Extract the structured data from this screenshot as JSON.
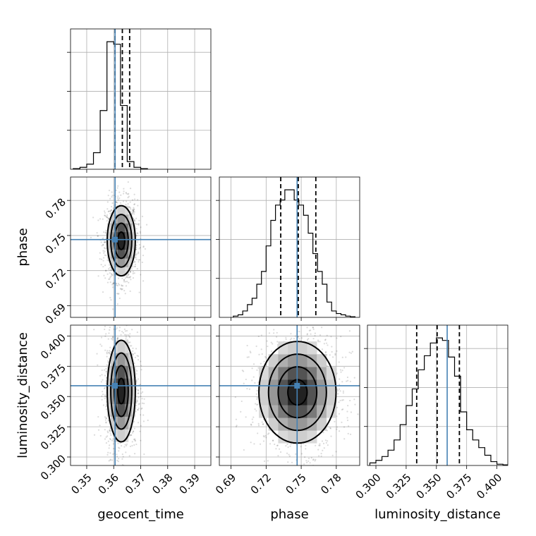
{
  "chart_data": {
    "type": "corner",
    "parameters": [
      "geocent_time",
      "phase",
      "luminosity_distance"
    ],
    "axis_labels": {
      "geocent_time": "geocent_time",
      "phase": "phase",
      "luminosity_distance": "luminosity_distance"
    },
    "ranges": {
      "geocent_time": [
        0.344,
        0.396
      ],
      "phase": [
        0.68,
        0.8
      ],
      "luminosity_distance": [
        0.293,
        0.409
      ]
    },
    "tick_labels": {
      "geocent_time": [
        "0.35",
        "0.36",
        "0.37",
        "0.38",
        "0.39"
      ],
      "phase": [
        "0.69",
        "0.72",
        "0.75",
        "0.78"
      ],
      "luminosity_distance": [
        "0.300",
        "0.325",
        "0.350",
        "0.375",
        "0.400"
      ]
    },
    "truths": {
      "geocent_time": 0.3605,
      "phase": 0.7465,
      "luminosity_distance": 0.3589
    },
    "quantiles": {
      "geocent_time": [
        0.3605,
        0.3632,
        0.3659
      ],
      "phase": [
        0.7325,
        0.7475,
        0.7625
      ],
      "luminosity_distance": [
        0.3337,
        0.3506,
        0.369
      ]
    },
    "histograms": {
      "geocent_time": {
        "bin_edges": [
          0.345,
          0.3475,
          0.35,
          0.3525,
          0.355,
          0.3575,
          0.36,
          0.3625,
          0.365,
          0.3675,
          0.37,
          0.3725
        ],
        "counts": [
          0.5,
          1.5,
          4,
          13,
          46,
          100,
          98,
          50,
          6,
          1.5,
          0.5
        ]
      },
      "phase": {
        "bin_edges": [
          0.692,
          0.696,
          0.7,
          0.704,
          0.708,
          0.712,
          0.716,
          0.72,
          0.724,
          0.728,
          0.732,
          0.736,
          0.74,
          0.744,
          0.748,
          0.752,
          0.756,
          0.76,
          0.764,
          0.768,
          0.772,
          0.776,
          0.78,
          0.784,
          0.788,
          0.792,
          0.796
        ],
        "counts": [
          1,
          2,
          5,
          10,
          15,
          26,
          36,
          56,
          76,
          88,
          92,
          100,
          100,
          92,
          88,
          80,
          66,
          50,
          36,
          26,
          12,
          5,
          3,
          2,
          1,
          0.5
        ]
      },
      "luminosity_distance": {
        "bin_edges": [
          0.295,
          0.3,
          0.305,
          0.31,
          0.315,
          0.32,
          0.325,
          0.33,
          0.335,
          0.34,
          0.345,
          0.35,
          0.355,
          0.36,
          0.365,
          0.37,
          0.375,
          0.38,
          0.385,
          0.39,
          0.395,
          0.4,
          0.405,
          0.41
        ],
        "counts": [
          2,
          4,
          7,
          12,
          20,
          32,
          47,
          60,
          75,
          86,
          96,
          100,
          98,
          85,
          70,
          42,
          28,
          20,
          14,
          8,
          3,
          1,
          0.5
        ]
      }
    },
    "contours": {
      "geocent_time_vs_phase": {
        "center": [
          0.3628,
          0.7455
        ],
        "sigma": [
          0.0026,
          0.015
        ]
      },
      "geocent_time_vs_luminosity_distance": {
        "center": [
          0.3628,
          0.3545
        ],
        "sigma": [
          0.0026,
          0.021
        ]
      },
      "phase_vs_luminosity_distance": {
        "center": [
          0.7468,
          0.3535
        ],
        "sigma": [
          0.0165,
          0.021
        ]
      }
    },
    "contour_levels_sigma": [
      0.5,
      1.0,
      1.5,
      2.0
    ],
    "grid": true
  }
}
